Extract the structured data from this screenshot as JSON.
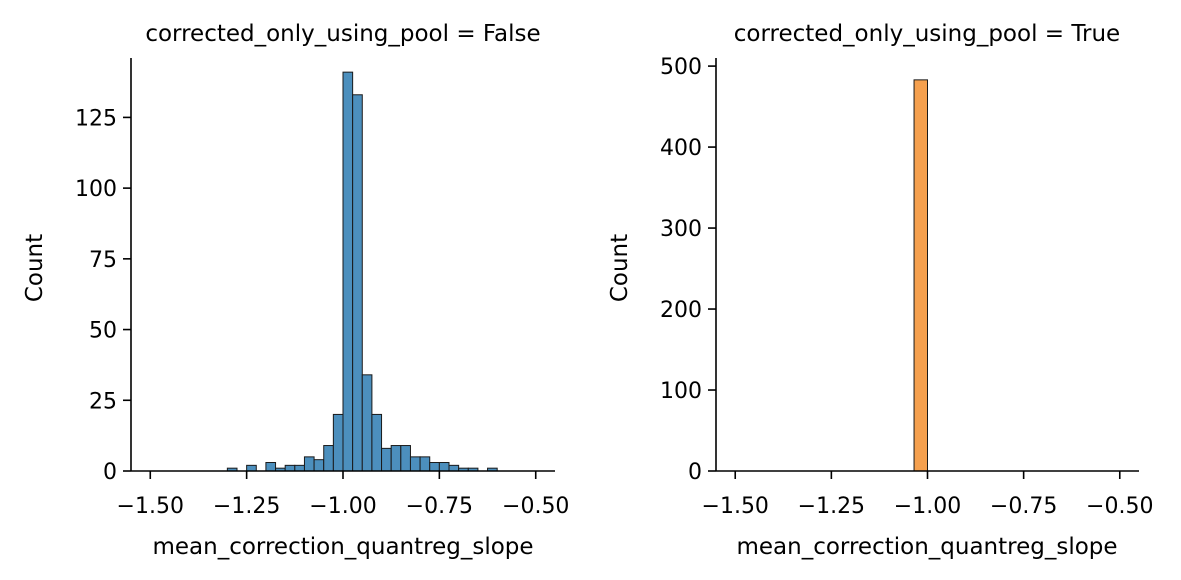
{
  "chart_data": [
    {
      "type": "bar",
      "title": "corrected_only_using_pool = False",
      "xlabel": "mean_correction_quantreg_slope",
      "ylabel": "Count",
      "xlim": [
        -1.55,
        -0.45
      ],
      "ylim": [
        0,
        146
      ],
      "x_ticks": [
        -1.5,
        -1.25,
        -1.0,
        -0.75,
        -0.5
      ],
      "x_tick_labels": [
        "−1.50",
        "−1.25",
        "−1.00",
        "−0.75",
        "−0.50"
      ],
      "y_ticks": [
        0,
        25,
        50,
        75,
        100,
        125
      ],
      "y_tick_labels": [
        "0",
        "25",
        "50",
        "75",
        "100",
        "125"
      ],
      "grid": false,
      "color": "#4c8fbd",
      "bins": [
        {
          "x0": -1.3,
          "x1": -1.275,
          "count": 1
        },
        {
          "x0": -1.25,
          "x1": -1.225,
          "count": 2
        },
        {
          "x0": -1.2,
          "x1": -1.175,
          "count": 3
        },
        {
          "x0": -1.175,
          "x1": -1.15,
          "count": 1
        },
        {
          "x0": -1.15,
          "x1": -1.125,
          "count": 2
        },
        {
          "x0": -1.125,
          "x1": -1.1,
          "count": 2
        },
        {
          "x0": -1.1,
          "x1": -1.075,
          "count": 5
        },
        {
          "x0": -1.075,
          "x1": -1.05,
          "count": 4
        },
        {
          "x0": -1.05,
          "x1": -1.025,
          "count": 9
        },
        {
          "x0": -1.025,
          "x1": -1.0,
          "count": 20
        },
        {
          "x0": -1.0,
          "x1": -0.975,
          "count": 141
        },
        {
          "x0": -0.975,
          "x1": -0.95,
          "count": 133
        },
        {
          "x0": -0.95,
          "x1": -0.925,
          "count": 34
        },
        {
          "x0": -0.925,
          "x1": -0.9,
          "count": 20
        },
        {
          "x0": -0.9,
          "x1": -0.875,
          "count": 8
        },
        {
          "x0": -0.875,
          "x1": -0.85,
          "count": 9
        },
        {
          "x0": -0.85,
          "x1": -0.825,
          "count": 9
        },
        {
          "x0": -0.825,
          "x1": -0.8,
          "count": 5
        },
        {
          "x0": -0.8,
          "x1": -0.775,
          "count": 5
        },
        {
          "x0": -0.775,
          "x1": -0.75,
          "count": 3
        },
        {
          "x0": -0.75,
          "x1": -0.725,
          "count": 3
        },
        {
          "x0": -0.725,
          "x1": -0.7,
          "count": 2
        },
        {
          "x0": -0.7,
          "x1": -0.675,
          "count": 1
        },
        {
          "x0": -0.675,
          "x1": -0.65,
          "count": 1
        },
        {
          "x0": -0.625,
          "x1": -0.6,
          "count": 1
        }
      ]
    },
    {
      "type": "bar",
      "title": "corrected_only_using_pool = True",
      "xlabel": "mean_correction_quantreg_slope",
      "ylabel": "Count",
      "xlim": [
        -1.55,
        -0.45
      ],
      "ylim": [
        0,
        510
      ],
      "x_ticks": [
        -1.5,
        -1.25,
        -1.0,
        -0.75,
        -0.5
      ],
      "x_tick_labels": [
        "−1.50",
        "−1.25",
        "−1.00",
        "−0.75",
        "−0.50"
      ],
      "y_ticks": [
        0,
        100,
        200,
        300,
        400,
        500
      ],
      "y_tick_labels": [
        "0",
        "100",
        "200",
        "300",
        "400",
        "500"
      ],
      "grid": false,
      "color": "#f5a04e",
      "bins": [
        {
          "x0": -1.035,
          "x1": -1.0,
          "count": 483
        }
      ]
    }
  ]
}
